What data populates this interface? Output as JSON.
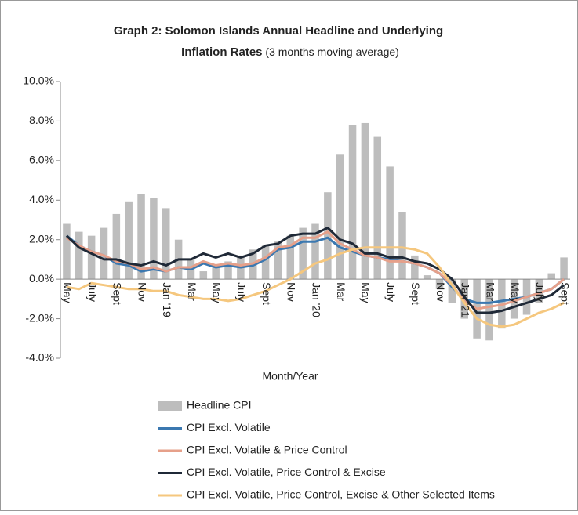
{
  "chart_data": {
    "type": "combo",
    "title": [
      "Graph 2:  Solomon Islands Annual Headline and Underlying",
      "Inflation Rates"
    ],
    "subtitle": "(3 months moving average)",
    "x_label": "Month/Year",
    "categories": [
      "May",
      null,
      "July",
      null,
      "Sept",
      null,
      "Nov",
      null,
      "Jan '19",
      null,
      "Mar",
      null,
      "May",
      null,
      "July",
      null,
      "Sept",
      null,
      "Nov",
      null,
      "Jan '20",
      null,
      "Mar",
      null,
      "May",
      null,
      "July",
      null,
      "Sept",
      null,
      "Nov",
      null,
      "Jan '21",
      null,
      "Mar",
      null,
      "May",
      null,
      "July",
      null,
      "Sept"
    ],
    "ylim": [
      -4,
      10
    ],
    "yticks": [
      {
        "value": -4,
        "label": "-4.0%"
      },
      {
        "value": -2,
        "label": "-2.0%"
      },
      {
        "value": 0,
        "label": "0.0%"
      },
      {
        "value": 2,
        "label": "2.0%"
      },
      {
        "value": 4,
        "label": "4.0%"
      },
      {
        "value": 6,
        "label": "6.0%"
      },
      {
        "value": 8,
        "label": "8.0%"
      },
      {
        "value": 10,
        "label": "10.0%"
      }
    ],
    "grid": false,
    "series": [
      {
        "name": "Headline CPI",
        "type": "bar",
        "color": "#bdbdbd",
        "values": [
          2.8,
          2.4,
          2.2,
          2.6,
          3.3,
          3.9,
          4.3,
          4.1,
          3.6,
          2.0,
          1.0,
          0.4,
          0.6,
          0.9,
          1.2,
          1.5,
          1.7,
          1.9,
          2.2,
          2.6,
          2.8,
          4.4,
          6.3,
          7.8,
          7.9,
          7.2,
          5.7,
          3.4,
          1.2,
          0.2,
          -0.5,
          -1.2,
          -2.0,
          -3.0,
          -3.1,
          -2.5,
          -2.0,
          -1.8,
          -1.2,
          0.3,
          1.1
        ]
      },
      {
        "name": "CPI Excl. Volatile",
        "type": "line",
        "color": "#3b78b0",
        "values": [
          2.2,
          1.7,
          1.4,
          1.2,
          0.8,
          0.7,
          0.4,
          0.5,
          0.4,
          0.6,
          0.5,
          0.8,
          0.6,
          0.7,
          0.6,
          0.7,
          1.0,
          1.5,
          1.6,
          1.9,
          1.9,
          2.1,
          1.6,
          1.4,
          1.2,
          1.1,
          1.0,
          0.9,
          0.8,
          0.6,
          0.3,
          -0.4,
          -1.0,
          -1.2,
          -1.2,
          -1.1,
          -1.0,
          -0.9,
          -0.7,
          -0.5,
          0.0
        ]
      },
      {
        "name": "CPI Excl. Volatile & Price Control",
        "type": "line",
        "color": "#e6a08a",
        "values": [
          2.1,
          1.7,
          1.4,
          1.2,
          0.9,
          0.8,
          0.5,
          0.6,
          0.4,
          0.6,
          0.6,
          0.9,
          0.7,
          0.8,
          0.7,
          0.8,
          1.1,
          1.6,
          1.7,
          2.1,
          2.1,
          2.4,
          1.8,
          1.5,
          1.2,
          1.1,
          0.9,
          0.9,
          0.8,
          0.6,
          0.3,
          -0.3,
          -1.1,
          -1.5,
          -1.4,
          -1.3,
          -1.1,
          -0.9,
          -0.7,
          -0.5,
          0.0
        ]
      },
      {
        "name": "CPI Excl. Volatile, Price Control & Excise",
        "type": "line",
        "color": "#1f2937",
        "values": [
          2.2,
          1.6,
          1.3,
          1.0,
          1.0,
          0.8,
          0.7,
          0.9,
          0.7,
          1.0,
          1.0,
          1.3,
          1.1,
          1.3,
          1.1,
          1.3,
          1.7,
          1.8,
          2.2,
          2.3,
          2.3,
          2.6,
          2.0,
          1.8,
          1.3,
          1.3,
          1.1,
          1.1,
          0.9,
          0.8,
          0.5,
          0.0,
          -0.9,
          -1.7,
          -1.7,
          -1.6,
          -1.4,
          -1.2,
          -1.0,
          -0.8,
          -0.3
        ]
      },
      {
        "name": "CPI Excl. Volatile, Price Control, Excise & Other Selected Items",
        "type": "line",
        "color": "#f5c77e",
        "values": [
          -0.4,
          -0.5,
          -0.2,
          -0.3,
          -0.4,
          -0.5,
          -0.5,
          -0.6,
          -0.6,
          -0.8,
          -0.9,
          -1.0,
          -1.0,
          -1.1,
          -1.0,
          -0.8,
          -0.6,
          -0.3,
          0.0,
          0.4,
          0.8,
          1.0,
          1.3,
          1.5,
          1.6,
          1.6,
          1.6,
          1.6,
          1.5,
          1.3,
          0.6,
          -0.3,
          -1.2,
          -2.0,
          -2.3,
          -2.4,
          -2.3,
          -2.0,
          -1.7,
          -1.5,
          -1.2
        ]
      }
    ]
  }
}
